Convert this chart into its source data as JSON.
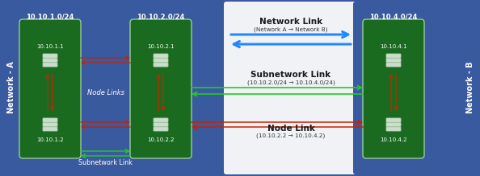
{
  "fig_width": 5.94,
  "fig_height": 2.19,
  "dpi": 100,
  "bg_color": "#3a5a9f",
  "panel_a_color": "#3a5a9f",
  "panel_b_color": "#3a5a9f",
  "panel_mid_color": "#f0f2f5",
  "subnet_box_color": "#1a6b20",
  "subnet_box_border": "#88bb88",
  "text_white": "#ffffff",
  "text_dark": "#1a1a1a",
  "text_mid": "#333333",
  "arrow_blue": "#2288ff",
  "arrow_green": "#22cc22",
  "arrow_red": "#cc2200",
  "network_a_label": "Network - A",
  "network_b_label": "Network - B",
  "subnet1_label": "10.10.1.0/24",
  "subnet2_label": "10.10.2.0/24",
  "subnet4_label": "10.10.4.0/24",
  "node11": "10.10.1.1",
  "node12": "10.10.1.2",
  "node21": "10.10.2.1",
  "node22": "10.10.2.2",
  "node41": "10.10.4.1",
  "node42": "10.10.4.2",
  "node_links_label": "Node Links",
  "subnetwork_link_bottom": "Subnetwork Link",
  "network_link_title": "Network Link",
  "network_link_sub": "(Network A → Network B)",
  "subnetwork_link_title": "Subnetwork Link",
  "subnetwork_link_sub": "(10.10.2.0/24 → 10.10.4.0/24)",
  "node_link_title": "Node Link",
  "node_link_sub": "(10.10.2.2 → 10.10.4.2)"
}
